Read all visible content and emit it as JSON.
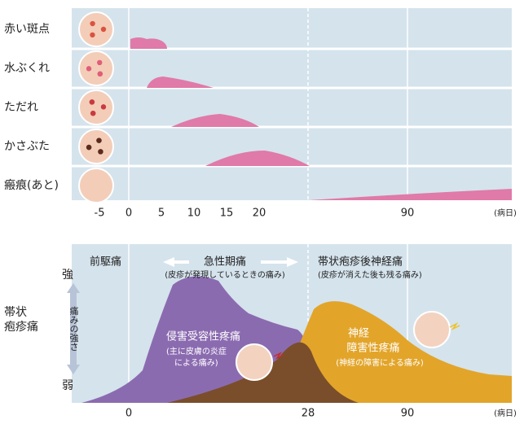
{
  "top_panel": {
    "rows": [
      {
        "label": "赤い斑点"
      },
      {
        "label": "水ぶくれ"
      },
      {
        "label": "ただれ"
      },
      {
        "label": "かさぶた"
      },
      {
        "label": "瘢痕(あと)"
      }
    ],
    "x_ticks": [
      "-5",
      "0",
      "5",
      "10",
      "15",
      "20",
      "90"
    ],
    "x_unit": "(病日)"
  },
  "bottom_panel": {
    "side_label": [
      "帯状",
      "疱疹痛"
    ],
    "strong": "強",
    "weak": "弱",
    "axis_label": "痛みの強さ",
    "phases": [
      {
        "title": "前駆痛"
      },
      {
        "title": "急性期痛",
        "note": "(皮疹が発現しているときの痛み)"
      },
      {
        "title": "帯状疱疹後神経痛",
        "note": "(皮疹が消えた後も残る痛み)"
      }
    ],
    "nociceptive": {
      "title": "侵害受容性疼痛",
      "note": [
        "(主に皮膚の炎症",
        "による痛み)"
      ]
    },
    "neuropathic": {
      "title": [
        "神経",
        "障害性疼痛"
      ],
      "note": "(神経の障害による痛み)"
    },
    "x_ticks": [
      "0",
      "28",
      "90"
    ],
    "x_unit": "(病日)"
  }
}
